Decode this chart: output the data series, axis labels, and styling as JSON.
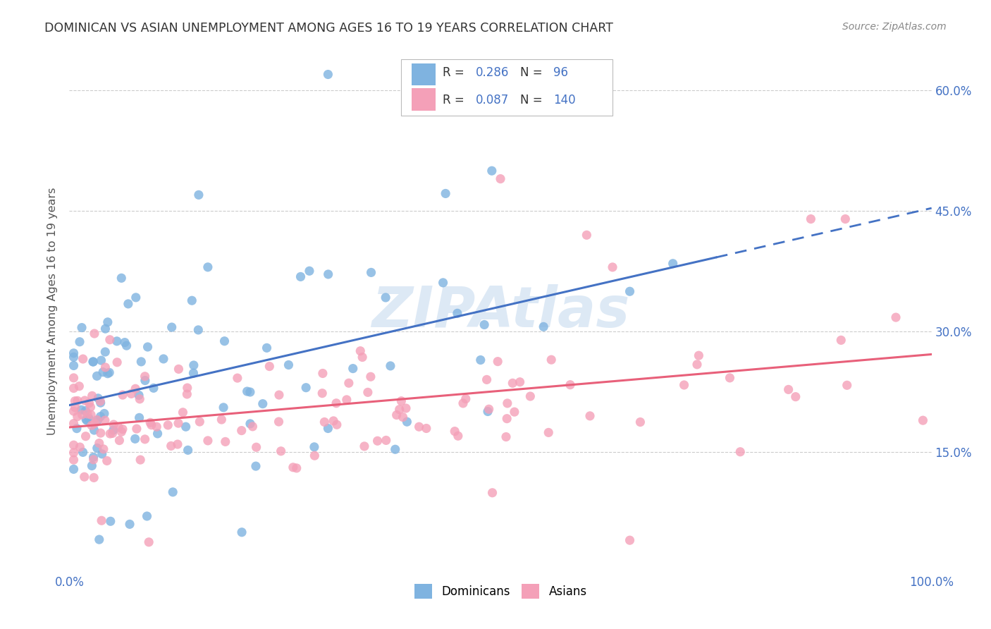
{
  "title": "DOMINICAN VS ASIAN UNEMPLOYMENT AMONG AGES 16 TO 19 YEARS CORRELATION CHART",
  "source": "Source: ZipAtlas.com",
  "ylabel": "Unemployment Among Ages 16 to 19 years",
  "xlim": [
    0,
    1.0
  ],
  "ylim": [
    0.0,
    0.65
  ],
  "dominican_color": "#7FB3E0",
  "asian_color": "#F4A0B8",
  "dominican_line_color": "#4472C4",
  "asian_line_color": "#E8607A",
  "dominican_R": 0.286,
  "dominican_N": 96,
  "asian_R": 0.087,
  "asian_N": 140,
  "watermark": "ZIPAtlas",
  "legend_label1": "Dominicans",
  "legend_label2": "Asians",
  "background_color": "#FFFFFF",
  "grid_color": "#CCCCCC",
  "title_color": "#333333",
  "tick_color": "#4472C4",
  "ylabel_color": "#555555",
  "source_color": "#888888"
}
